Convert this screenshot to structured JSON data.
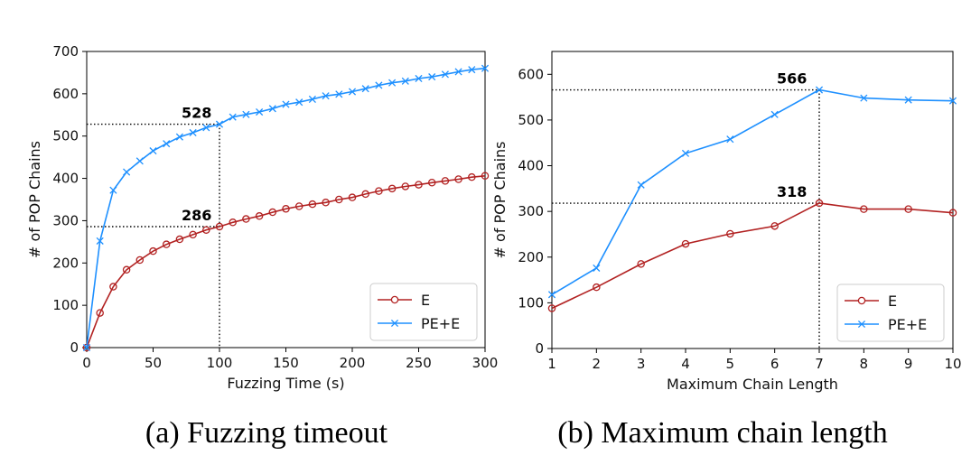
{
  "chart_data": [
    {
      "type": "line",
      "caption": "(a) Fuzzing timeout",
      "xlabel": "Fuzzing Time (s)",
      "ylabel": "# of POP Chains",
      "xlim": [
        0,
        300
      ],
      "ylim": [
        0,
        700
      ],
      "xticks": [
        0,
        50,
        100,
        150,
        200,
        250,
        300
      ],
      "yticks": [
        0,
        100,
        200,
        300,
        400,
        500,
        600,
        700
      ],
      "legend_position": "bottom-right",
      "series": [
        {
          "name": "E",
          "marker": "circle",
          "color": "#b22222",
          "x": [
            0,
            10,
            20,
            30,
            40,
            50,
            60,
            70,
            80,
            90,
            100,
            110,
            120,
            130,
            140,
            150,
            160,
            170,
            180,
            190,
            200,
            210,
            220,
            230,
            240,
            250,
            260,
            270,
            280,
            290,
            300
          ],
          "values": [
            0,
            82,
            144,
            184,
            207,
            228,
            244,
            256,
            267,
            278,
            286,
            296,
            304,
            311,
            320,
            328,
            334,
            339,
            343,
            350,
            355,
            363,
            370,
            376,
            381,
            385,
            390,
            394,
            398,
            403,
            406
          ]
        },
        {
          "name": "PE+E",
          "marker": "x",
          "color": "#1e90ff",
          "x": [
            0,
            10,
            20,
            30,
            40,
            50,
            60,
            70,
            80,
            90,
            100,
            110,
            120,
            130,
            140,
            150,
            160,
            170,
            180,
            190,
            200,
            210,
            220,
            230,
            240,
            250,
            260,
            270,
            280,
            290,
            300
          ],
          "values": [
            0,
            252,
            372,
            415,
            441,
            465,
            482,
            498,
            508,
            520,
            528,
            545,
            551,
            557,
            565,
            575,
            580,
            587,
            595,
            599,
            605,
            612,
            620,
            626,
            630,
            636,
            640,
            646,
            652,
            657,
            660
          ]
        }
      ],
      "annotations": [
        {
          "text": "528",
          "x": 100,
          "y": 528
        },
        {
          "text": "286",
          "x": 100,
          "y": 286
        }
      ]
    },
    {
      "type": "line",
      "caption": "(b) Maximum chain length",
      "xlabel": "Maximum Chain Length",
      "ylabel": "# of POP Chains",
      "xlim": [
        1,
        10
      ],
      "ylim": [
        0,
        650
      ],
      "xticks": [
        1,
        2,
        3,
        4,
        5,
        6,
        7,
        8,
        9,
        10
      ],
      "yticks": [
        0,
        100,
        200,
        300,
        400,
        500,
        600
      ],
      "legend_position": "bottom-right",
      "series": [
        {
          "name": "E",
          "marker": "circle",
          "color": "#b22222",
          "x": [
            1,
            2,
            3,
            4,
            5,
            6,
            7,
            8,
            9,
            10
          ],
          "values": [
            88,
            134,
            185,
            229,
            251,
            268,
            318,
            305,
            305,
            297
          ]
        },
        {
          "name": "PE+E",
          "marker": "x",
          "color": "#1e90ff",
          "x": [
            1,
            2,
            3,
            4,
            5,
            6,
            7,
            8,
            9,
            10
          ],
          "values": [
            118,
            176,
            358,
            427,
            458,
            512,
            566,
            548,
            544,
            542
          ]
        }
      ],
      "annotations": [
        {
          "text": "566",
          "x": 7,
          "y": 566
        },
        {
          "text": "318",
          "x": 7,
          "y": 318
        }
      ]
    }
  ]
}
